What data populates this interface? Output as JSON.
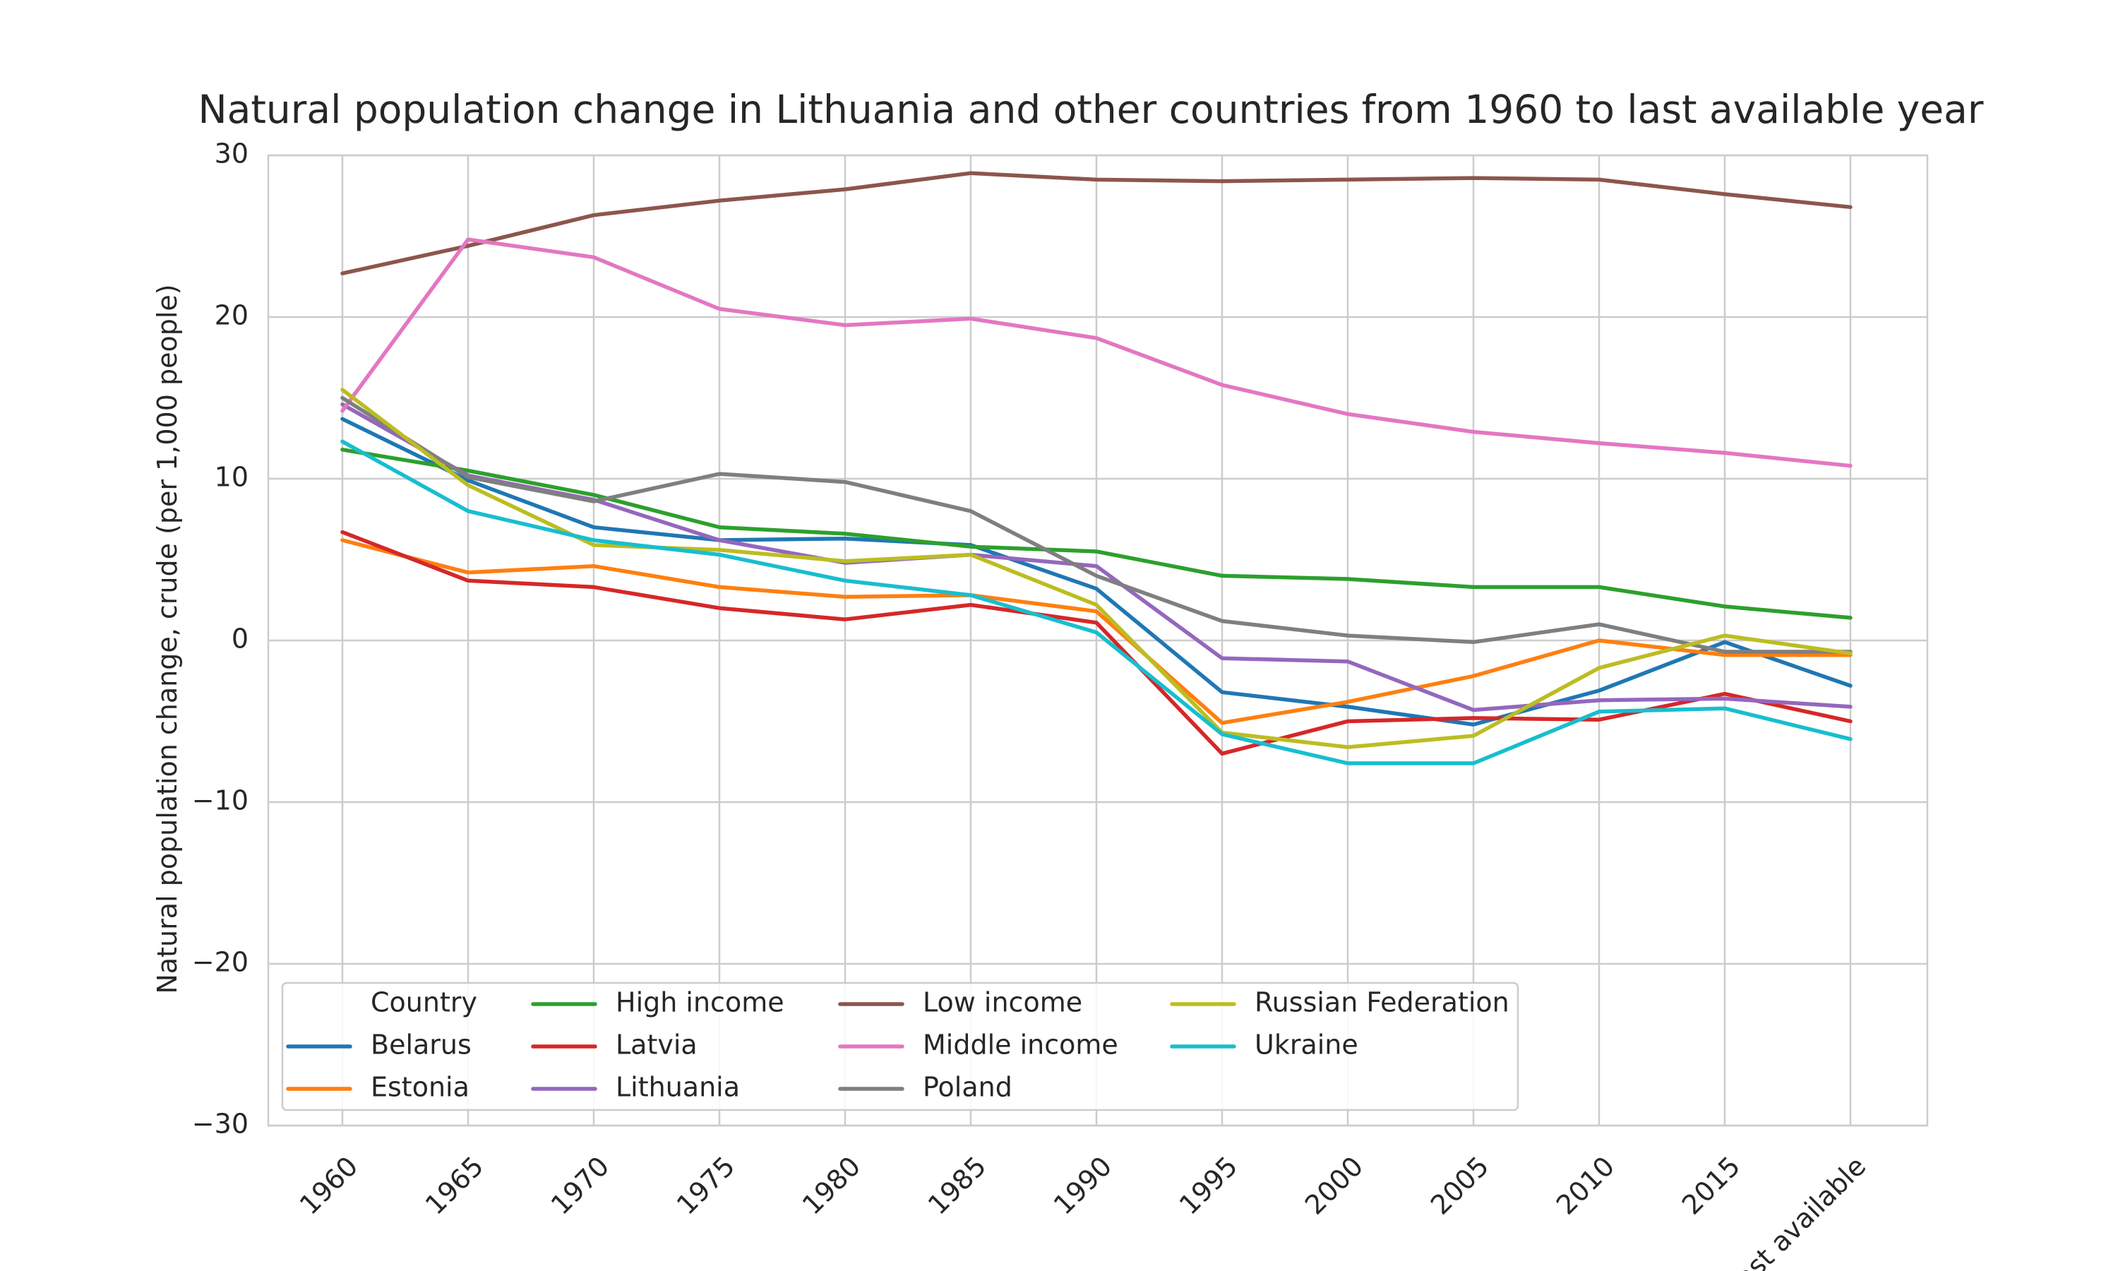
{
  "chart_data": {
    "type": "line",
    "title": "Natural population change in Lithuania and other countries from 1960 to last available year",
    "xlabel": "",
    "ylabel": "Natural population change, crude (per 1,000 people)",
    "ylim": [
      -30,
      30
    ],
    "yticks": [
      "30",
      "20",
      "10",
      "0",
      "−10",
      "−20",
      "−30"
    ],
    "ytick_values": [
      30,
      20,
      10,
      0,
      -10,
      -20,
      -30
    ],
    "categories": [
      "1960",
      "1965",
      "1970",
      "1975",
      "1980",
      "1985",
      "1990",
      "1995",
      "2000",
      "2005",
      "2010",
      "2015",
      "Last available"
    ],
    "grid": true,
    "legend": {
      "title": "Country",
      "placement": "lower-left",
      "columns": 4
    },
    "series": [
      {
        "name": "Belarus",
        "color": "#1f77b4",
        "values": [
          13.7,
          9.9,
          7.0,
          6.2,
          6.3,
          5.9,
          3.2,
          -3.2,
          -4.1,
          -5.2,
          -3.1,
          -0.1,
          -2.8
        ]
      },
      {
        "name": "Estonia",
        "color": "#ff7f0e",
        "values": [
          6.2,
          4.2,
          4.6,
          3.3,
          2.7,
          2.8,
          1.8,
          -5.1,
          -3.8,
          -2.2,
          0.0,
          -0.9,
          -0.9
        ]
      },
      {
        "name": "High income",
        "color": "#2ca02c",
        "values": [
          11.8,
          10.5,
          9.0,
          7.0,
          6.6,
          5.8,
          5.5,
          4.0,
          3.8,
          3.3,
          3.3,
          2.1,
          1.4
        ]
      },
      {
        "name": "Latvia",
        "color": "#d62728",
        "values": [
          6.7,
          3.7,
          3.3,
          2.0,
          1.3,
          2.2,
          1.1,
          -7.0,
          -5.0,
          -4.8,
          -4.9,
          -3.3,
          -5.0
        ]
      },
      {
        "name": "Lithuania",
        "color": "#9467bd",
        "values": [
          14.6,
          10.2,
          8.7,
          6.2,
          4.8,
          5.3,
          4.6,
          -1.1,
          -1.3,
          -4.3,
          -3.7,
          -3.6,
          -4.1
        ]
      },
      {
        "name": "Low income",
        "color": "#8c564b",
        "values": [
          22.7,
          24.4,
          26.3,
          27.2,
          27.9,
          28.9,
          28.5,
          28.4,
          28.5,
          28.6,
          28.5,
          27.6,
          26.8
        ]
      },
      {
        "name": "Middle income",
        "color": "#e377c2",
        "values": [
          14.2,
          24.8,
          23.7,
          20.5,
          19.5,
          19.9,
          18.7,
          15.8,
          14.0,
          12.9,
          12.2,
          11.6,
          10.8
        ]
      },
      {
        "name": "Poland",
        "color": "#7f7f7f",
        "values": [
          15.0,
          10.1,
          8.6,
          10.3,
          9.8,
          8.0,
          4.0,
          1.2,
          0.3,
          -0.1,
          1.0,
          -0.7,
          -0.7
        ]
      },
      {
        "name": "Russian Federation",
        "color": "#bcbd22",
        "values": [
          15.5,
          9.6,
          5.9,
          5.6,
          4.9,
          5.3,
          2.2,
          -5.7,
          -6.6,
          -5.9,
          -1.7,
          0.3,
          -0.8
        ]
      },
      {
        "name": "Ukraine",
        "color": "#17becf",
        "values": [
          12.3,
          8.0,
          6.2,
          5.3,
          3.7,
          2.8,
          0.5,
          -5.8,
          -7.6,
          -7.6,
          -4.4,
          -4.2,
          -6.1
        ]
      }
    ]
  }
}
